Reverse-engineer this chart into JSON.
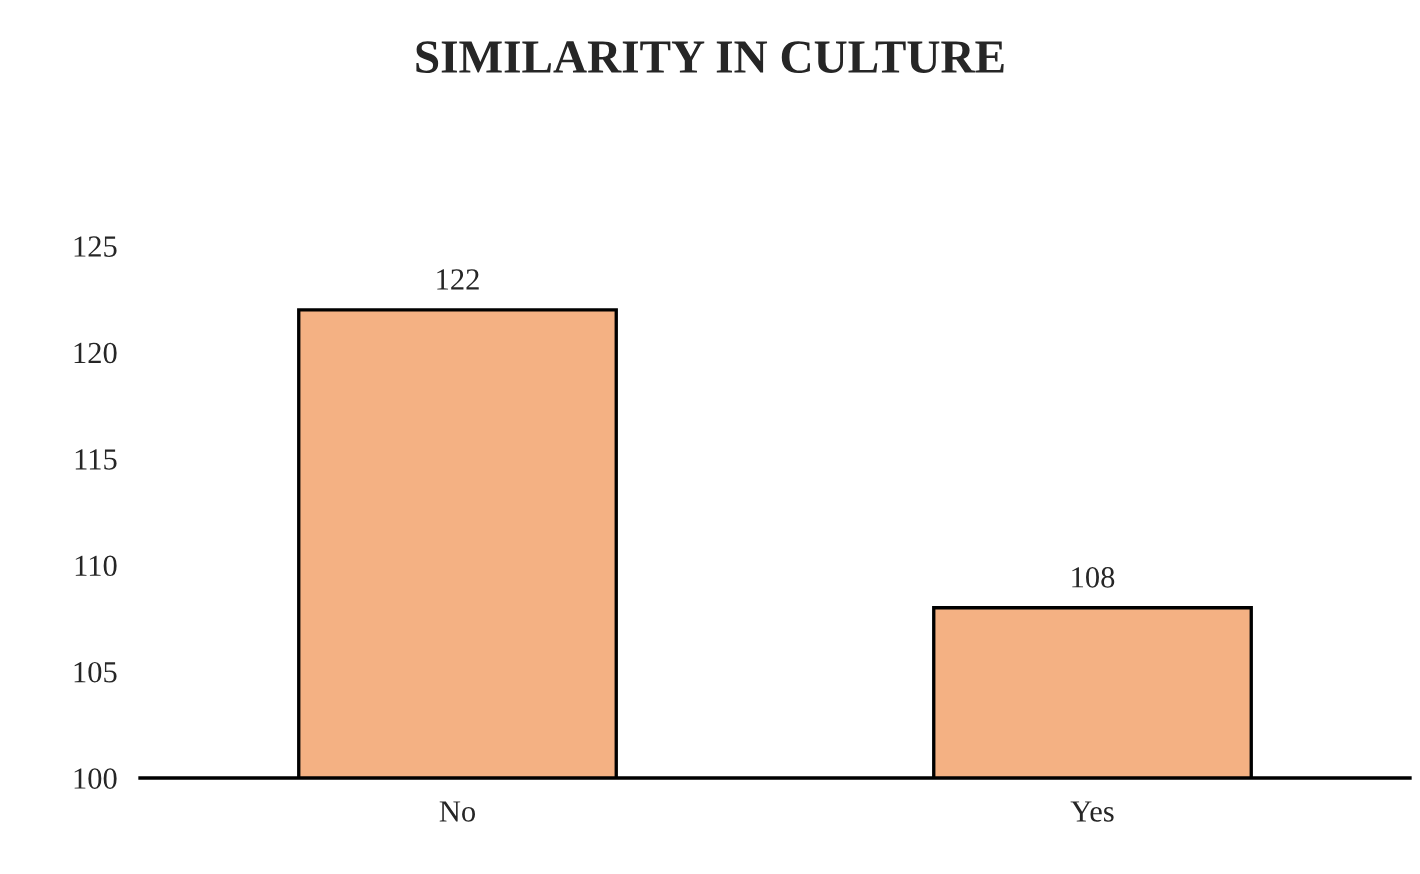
{
  "chart_data": {
    "type": "bar",
    "title": "SIMILARITY IN CULTURE",
    "categories": [
      "No",
      "Yes"
    ],
    "values": [
      122,
      108
    ],
    "color": "#f4b183",
    "ylim": [
      100,
      125
    ],
    "yticks": [
      100,
      105,
      110,
      115,
      120,
      125
    ],
    "data_labels": true,
    "grid": false,
    "legend": false
  }
}
